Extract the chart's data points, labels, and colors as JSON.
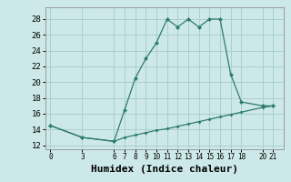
{
  "x_main": [
    0,
    3,
    6,
    7,
    8,
    9,
    10,
    11,
    12,
    13,
    14,
    15,
    16,
    17,
    18,
    20,
    21
  ],
  "y_main": [
    14.5,
    13.0,
    12.5,
    16.5,
    20.5,
    23.0,
    25.0,
    28.0,
    27.0,
    28.0,
    27.0,
    28.0,
    28.0,
    21.0,
    17.5,
    17.0,
    17.0
  ],
  "x_base": [
    0,
    3,
    6,
    7,
    8,
    9,
    10,
    11,
    12,
    13,
    14,
    15,
    16,
    17,
    18,
    20,
    21
  ],
  "y_base": [
    14.5,
    13.0,
    12.5,
    13.0,
    13.3,
    13.6,
    13.9,
    14.1,
    14.4,
    14.7,
    15.0,
    15.3,
    15.6,
    15.9,
    16.2,
    16.8,
    17.0
  ],
  "line_color": "#2d7b6e",
  "background_color": "#cde8e8",
  "grid_color": "#aacfcf",
  "xlabel": "Humidex (Indice chaleur)",
  "xlabel_fontsize": 8,
  "xticks": [
    0,
    3,
    6,
    7,
    8,
    9,
    10,
    11,
    12,
    13,
    14,
    15,
    16,
    17,
    18,
    20,
    21
  ],
  "yticks": [
    12,
    14,
    16,
    18,
    20,
    22,
    24,
    26,
    28
  ],
  "ylim": [
    11.5,
    29.5
  ],
  "xlim": [
    -0.5,
    22.0
  ]
}
